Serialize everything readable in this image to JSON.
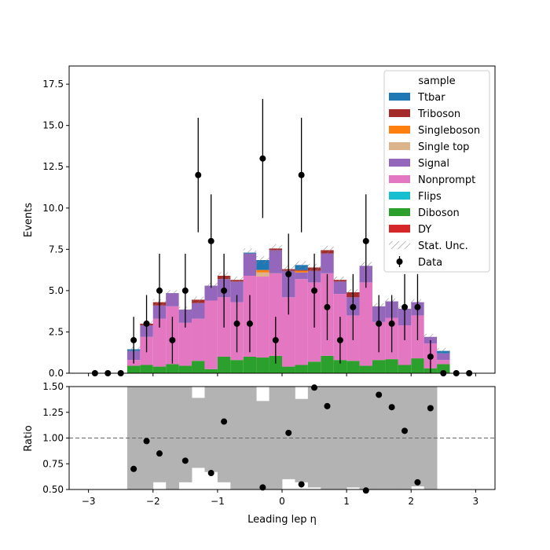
{
  "chart_data": [
    {
      "type": "bar",
      "stacked": true,
      "ylabel": "Events",
      "xlim": [
        -3.3,
        3.3
      ],
      "ylim": [
        0,
        18.6
      ],
      "yticks": [
        "0.0",
        "2.5",
        "5.0",
        "7.5",
        "10.0",
        "12.5",
        "15.0",
        "17.5"
      ],
      "bin_edges": [
        -3.0,
        -2.8,
        -2.6,
        -2.4,
        -2.2,
        -2.0,
        -1.8,
        -1.6,
        -1.4,
        -1.2,
        -1.0,
        -0.8,
        -0.6,
        -0.4,
        -0.2,
        0.0,
        0.2,
        0.4,
        0.6,
        0.8,
        1.0,
        1.2,
        1.4,
        1.6,
        1.8,
        2.0,
        2.2,
        2.4,
        2.6,
        2.8,
        3.0
      ],
      "legend": {
        "title": "sample",
        "position": "top-right"
      },
      "series": [
        {
          "name": "DY",
          "color": "#d62728",
          "values": [
            0,
            0,
            0,
            0,
            0,
            0,
            0,
            0,
            0,
            0,
            0,
            0,
            0,
            0,
            0,
            0,
            0,
            0,
            0,
            0,
            0,
            0,
            0,
            0,
            0,
            0,
            0,
            0,
            0,
            0
          ]
        },
        {
          "name": "Diboson",
          "color": "#2ca02c",
          "values": [
            0,
            0,
            0,
            0.45,
            0.5,
            0.4,
            0.55,
            0.45,
            0.75,
            0.25,
            1.0,
            0.8,
            1.0,
            0.95,
            1.05,
            0.4,
            0.5,
            0.7,
            1.05,
            0.8,
            0.75,
            0.45,
            0.8,
            0.85,
            0.5,
            0.9,
            0.3,
            0.55,
            0,
            0
          ]
        },
        {
          "name": "Flips",
          "color": "#17becf",
          "values": [
            0,
            0,
            0,
            0,
            0,
            0,
            0,
            0,
            0,
            0,
            0,
            0,
            0,
            0,
            0,
            0,
            0,
            0,
            0,
            0,
            0,
            0,
            0,
            0,
            0,
            0,
            0,
            0,
            0,
            0
          ]
        },
        {
          "name": "Nonprompt",
          "color": "#e377c2",
          "values": [
            0,
            0,
            0,
            0.35,
            1.7,
            2.9,
            3.5,
            2.6,
            2.55,
            4.15,
            3.6,
            3.5,
            4.9,
            4.9,
            5.0,
            4.2,
            5.2,
            4.8,
            5.0,
            4.0,
            2.75,
            5.05,
            2.3,
            2.5,
            2.4,
            2.6,
            1.5,
            0.25,
            0,
            0
          ]
        },
        {
          "name": "Signal",
          "color": "#9467bd",
          "values": [
            0,
            0,
            0,
            0.55,
            0.7,
            0.8,
            0.8,
            0.8,
            0.95,
            0.9,
            1.1,
            1.25,
            1.35,
            0,
            1.4,
            1.6,
            0.4,
            0.7,
            1.2,
            0.75,
            1.1,
            1.0,
            0.95,
            1.0,
            1.0,
            0.8,
            0.4,
            0.4,
            0,
            0
          ]
        },
        {
          "name": "Single top",
          "color": "#dbb48c",
          "values": [
            0,
            0,
            0,
            0,
            0,
            0,
            0,
            0,
            0,
            0,
            0,
            0,
            0,
            0.25,
            0,
            0,
            0,
            0,
            0,
            0,
            0,
            0,
            0,
            0,
            0,
            0,
            0,
            0,
            0,
            0
          ]
        },
        {
          "name": "Singleboson",
          "color": "#ff7f0e",
          "values": [
            0,
            0,
            0,
            0,
            0,
            0,
            0,
            0,
            0,
            0,
            0,
            0,
            0,
            0.15,
            0,
            0,
            0.1,
            0,
            0,
            0,
            0,
            0,
            0,
            0,
            0,
            0,
            0,
            0,
            0,
            0
          ]
        },
        {
          "name": "Triboson",
          "color": "#a52a2a",
          "values": [
            0,
            0,
            0,
            0,
            0.1,
            0.2,
            0,
            0,
            0.2,
            0,
            0.2,
            0.1,
            0,
            0,
            0.1,
            0.1,
            0.05,
            0.2,
            0.2,
            0.1,
            0.3,
            0,
            0,
            0,
            0,
            0,
            0,
            0,
            0,
            0
          ]
        },
        {
          "name": "Ttbar",
          "color": "#1f77b4",
          "values": [
            0,
            0,
            0,
            0.1,
            0,
            0,
            0,
            0,
            0,
            0,
            0,
            0,
            0.05,
            0.6,
            0,
            0,
            0.3,
            0,
            0,
            0,
            0,
            0,
            0,
            0,
            0,
            0,
            0,
            0.15,
            0,
            0
          ]
        }
      ],
      "stat_unc": {
        "name": "Stat. Unc.",
        "fraction": 0.035
      },
      "data": {
        "name": "Data",
        "color": "#000000",
        "x": [
          -2.9,
          -2.7,
          -2.5,
          -2.3,
          -2.1,
          -1.9,
          -1.7,
          -1.5,
          -1.3,
          -1.1,
          -0.9,
          -0.7,
          -0.5,
          -0.3,
          -0.1,
          0.1,
          0.3,
          0.5,
          0.7,
          0.9,
          1.1,
          1.3,
          1.5,
          1.7,
          1.9,
          2.1,
          2.3,
          2.5,
          2.7,
          2.9
        ],
        "y": [
          0,
          0,
          0,
          2,
          3,
          5,
          2,
          5,
          12,
          8,
          5,
          3,
          3,
          13,
          2,
          6,
          12,
          5,
          4,
          2,
          4,
          8,
          3,
          3,
          4,
          4,
          1,
          0,
          0,
          0
        ]
      },
      "legend_order": [
        "Ttbar",
        "Triboson",
        "Singleboson",
        "Single top",
        "Signal",
        "Nonprompt",
        "Flips",
        "Diboson",
        "DY",
        "Stat. Unc.",
        "Data"
      ]
    },
    {
      "type": "scatter",
      "xlabel": "Leading lep η",
      "ylabel": "Ratio",
      "xlim": [
        -3.3,
        3.3
      ],
      "ylim": [
        0.5,
        1.5
      ],
      "xticks": [
        "−3",
        "−2",
        "−1",
        "0",
        "1",
        "2",
        "3"
      ],
      "yticks": [
        "0.50",
        "0.75",
        "1.00",
        "1.25",
        "1.50"
      ],
      "reference_line": 1.0,
      "unc_band": {
        "color": "#b3b3b3",
        "low": [
          null,
          null,
          null,
          0.5,
          0.5,
          0.57,
          0.5,
          0.57,
          0.71,
          0.67,
          0.57,
          0.5,
          0.5,
          0.5,
          0.5,
          0.6,
          0.57,
          0.52,
          0.5,
          0.5,
          0.52,
          0.5,
          0.5,
          0.5,
          0.5,
          0.53,
          0.5,
          null,
          null,
          null
        ],
        "high": [
          null,
          null,
          null,
          1.5,
          1.5,
          1.5,
          1.5,
          1.5,
          1.39,
          1.5,
          1.5,
          1.5,
          1.5,
          1.36,
          1.5,
          1.5,
          1.38,
          1.5,
          1.5,
          1.5,
          1.5,
          1.5,
          1.5,
          1.5,
          1.5,
          1.5,
          1.5,
          null,
          null,
          null
        ]
      },
      "points": {
        "x": [
          -2.3,
          -2.1,
          -1.9,
          -1.5,
          -1.1,
          -0.9,
          -0.3,
          0.1,
          0.3,
          0.5,
          0.7,
          1.3,
          1.5,
          1.7,
          1.9,
          2.1,
          2.3
        ],
        "y": [
          0.7,
          0.97,
          0.85,
          0.78,
          0.66,
          1.16,
          0.52,
          1.05,
          0.55,
          1.49,
          1.31,
          0.49,
          1.42,
          1.3,
          1.07,
          0.57,
          1.29
        ]
      }
    }
  ]
}
